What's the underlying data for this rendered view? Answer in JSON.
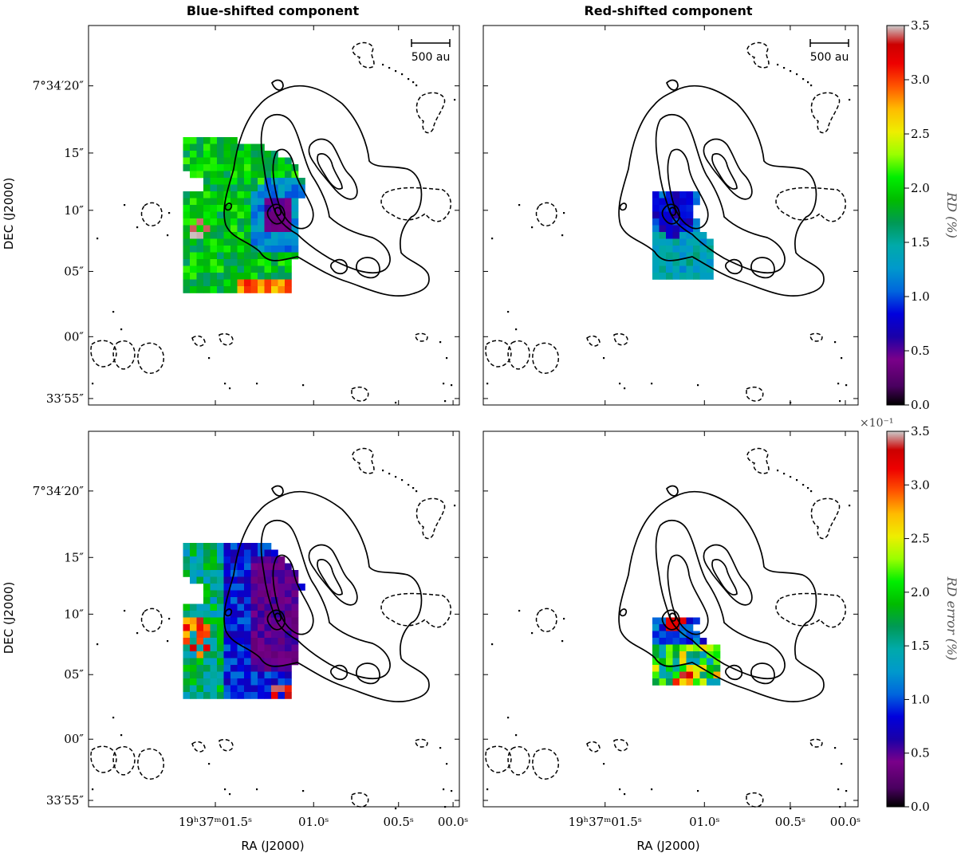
{
  "figure": {
    "col_titles": [
      "Blue-shifted component",
      "Red-shifted component"
    ],
    "ylabel": "DEC (J2000)",
    "xlabel": "RA (J2000)",
    "ytick_labels": [
      "7°34′20″",
      "15″",
      "10″",
      "05″",
      "00″",
      "33′55″"
    ],
    "xtick_labels": [
      "19ʰ37ᵐ01.5ˢ",
      "01.0ˢ",
      "00.5ˢ",
      "00.0ˢ"
    ],
    "scalebar_label": "500 au",
    "cbar_top_label": "RD (%)",
    "cbar_bottom_label": "RD error (%)",
    "cbar_ticks": [
      "0.0",
      "0.5",
      "1.0",
      "1.5",
      "2.0",
      "2.5",
      "3.0",
      "3.5"
    ],
    "cbar_bottom_multiplier": "×10⁻¹"
  },
  "chart_data": [
    {
      "type": "heatmap",
      "title": "Blue-shifted component",
      "xlabel": "",
      "ylabel": "DEC (J2000)",
      "colorbar_label": "RD (%)",
      "colorbar_range": [
        0.0,
        3.5
      ],
      "colormap": "nipy_spectral",
      "region_summary": {
        "core": 0.3,
        "inner": 1.0,
        "outer": 1.9,
        "southern_edge": 2.9
      }
    },
    {
      "type": "heatmap",
      "title": "Red-shifted component",
      "xlabel": "",
      "ylabel": "",
      "colorbar_label": "RD (%)",
      "colorbar_range": [
        0.0,
        3.5
      ],
      "colormap": "nipy_spectral",
      "region_summary": {
        "core": 0.6,
        "inner": 1.0,
        "outer": 1.4
      }
    },
    {
      "type": "heatmap",
      "title": "",
      "xlabel": "RA (J2000)",
      "ylabel": "DEC (J2000)",
      "colorbar_label": "RD error (%)",
      "colorbar_range": [
        0.0,
        0.35
      ],
      "colormap": "nipy_spectral",
      "region_summary": {
        "core": 0.03,
        "inner": 0.06,
        "outer": 0.16,
        "edge": 0.27
      }
    },
    {
      "type": "heatmap",
      "title": "",
      "xlabel": "RA (J2000)",
      "ylabel": "",
      "colorbar_label": "RD error (%)",
      "colorbar_range": [
        0.0,
        0.35
      ],
      "colormap": "nipy_spectral",
      "region_summary": {
        "core": 0.32,
        "inner": 0.07,
        "outer": 0.2
      }
    }
  ],
  "colors": {
    "contour": "#000000",
    "axis": "#000000"
  }
}
